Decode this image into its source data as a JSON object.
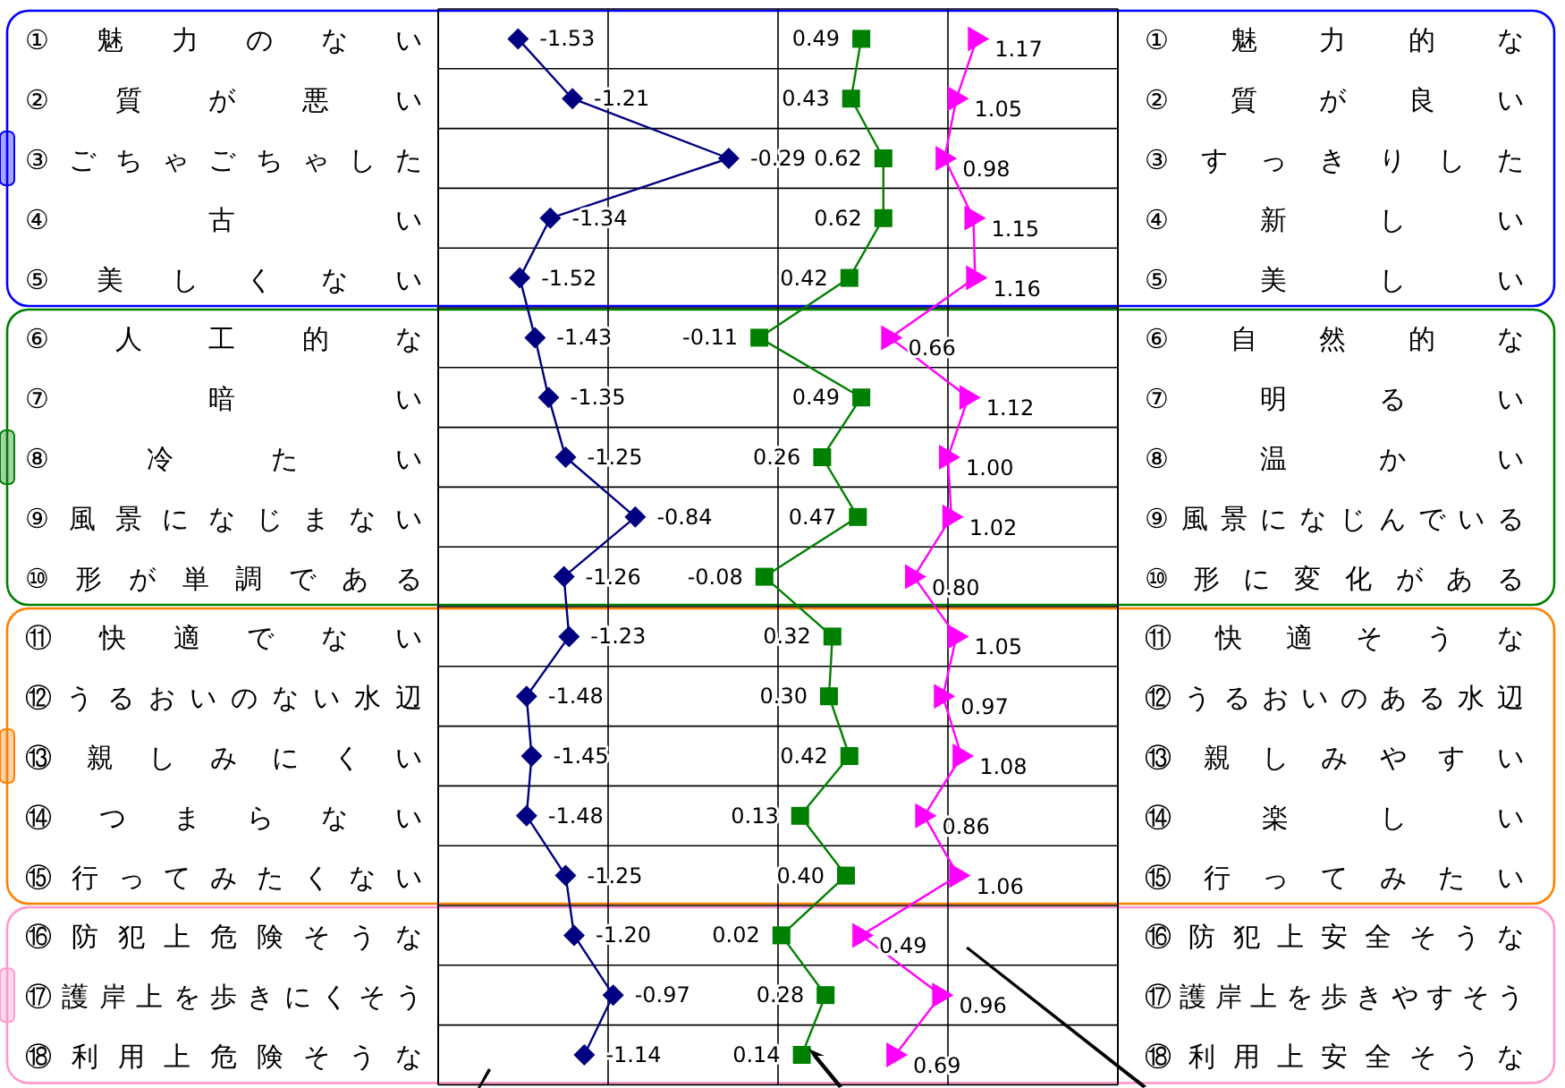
{
  "chart_data": {
    "type": "line",
    "orientation": "horizontal",
    "tick_labels": "y",
    "categories": [
      "①魅力のない",
      "②質が悪い",
      "③ごちゃごちゃした",
      "④古い",
      "⑤美しくない",
      "⑥人工的な",
      "⑦暗い",
      "⑧冷たい",
      "⑨風景になじまない",
      "⑩形が単調である",
      "⑪快適でない",
      "⑫うるおいのない水辺",
      "⑬親しみにくい",
      "⑭つまらない",
      "⑮行ってみたくない",
      "⑯防犯上危険そうな",
      "⑰護岸上を歩きにくそう",
      "⑱利用上危険そうな"
    ],
    "y2_categories": [
      "①魅力的な",
      "②質が良い",
      "③すっきりした",
      "④新しい",
      "⑤美しい",
      "⑥自然的な",
      "⑦明るい",
      "⑧温かい",
      "⑨風景になじんでいる",
      "⑩形に変化がある",
      "⑪快適そうな",
      "⑫うるおいのある水辺",
      "⑬親しみやすい",
      "⑭楽しい",
      "⑮行ってみたい",
      "⑯防犯上安全そうな",
      "⑰護岸上を歩きやすそう",
      "⑱利用上安全そうな"
    ],
    "xlim": [
      -2,
      2
    ],
    "xticks": [
      {
        "value": -1,
        "label": null
      },
      {
        "value": 0,
        "label": null
      },
      {
        "value": 1,
        "label": null
      }
    ],
    "grid": "x",
    "series": [
      {
        "color": "#000080",
        "marker": "diamond",
        "values": [
          -1.53,
          -1.21,
          -0.29,
          -1.34,
          -1.52,
          -1.43,
          -1.35,
          -1.25,
          -0.84,
          -1.26,
          -1.23,
          -1.48,
          -1.45,
          -1.48,
          -1.25,
          -1.2,
          -0.97,
          -1.14
        ],
        "value_labels": [
          "-1.53",
          "-1.21",
          "-0.29",
          "-1.34",
          "-1.52",
          "-1.43",
          "-1.35",
          "-1.25",
          "-0.84",
          "-1.26",
          "-1.23",
          "-1.48",
          "-1.45",
          "-1.48",
          "-1.25",
          "-1.20",
          "-0.97",
          "-1.14"
        ]
      },
      {
        "color": "#008000",
        "marker": "square",
        "values": [
          0.49,
          0.43,
          0.62,
          0.62,
          0.42,
          -0.11,
          0.49,
          0.26,
          0.47,
          -0.08,
          0.32,
          0.3,
          0.42,
          0.13,
          0.4,
          0.02,
          0.28,
          0.14
        ],
        "value_labels": [
          "0.49",
          "0.43",
          "0.62",
          "0.62",
          "0.42",
          "-0.11",
          "0.49",
          "0.26",
          "0.47",
          "-0.08",
          "0.32",
          "0.30",
          "0.42",
          "0.13",
          "0.40",
          "0.02",
          "0.28",
          "0.14"
        ]
      },
      {
        "color": "#ff00ff",
        "marker": "triangle",
        "values": [
          1.17,
          1.05,
          0.98,
          1.15,
          1.16,
          0.66,
          1.12,
          1.0,
          1.02,
          0.8,
          1.05,
          0.97,
          1.08,
          0.86,
          1.06,
          0.49,
          0.96,
          0.69
        ],
        "value_labels": [
          "1.17",
          "1.05",
          "0.98",
          "1.15",
          "1.16",
          "0.66",
          "1.12",
          "1.00",
          "1.02",
          "0.80",
          "1.05",
          "0.97",
          "1.08",
          "0.86",
          "1.06",
          "0.49",
          "0.96",
          "0.69"
        ]
      }
    ]
  }
}
